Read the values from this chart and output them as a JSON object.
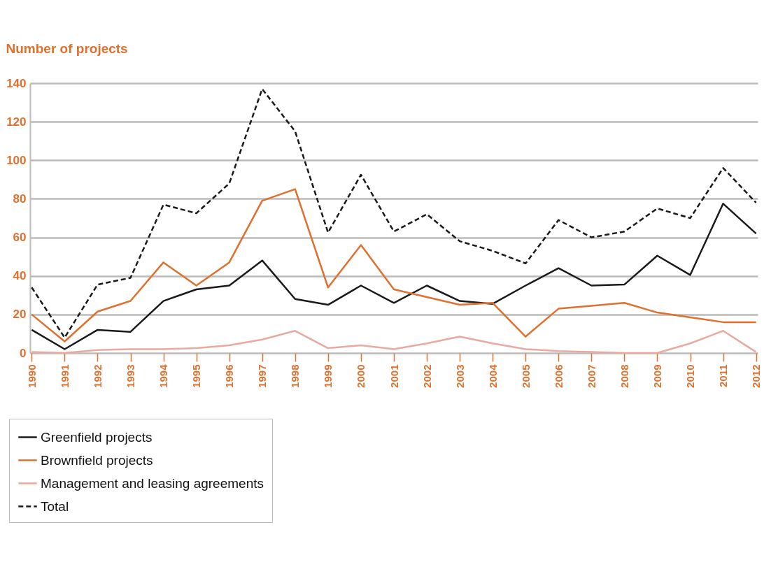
{
  "chart_data": {
    "type": "line",
    "ylabel": "Number of projects",
    "categories": [
      "1990",
      "1991",
      "1992",
      "1993",
      "1994",
      "1995",
      "1996",
      "1997",
      "1998",
      "1999",
      "2000",
      "2001",
      "2002",
      "2003",
      "2004",
      "2005",
      "2006",
      "2007",
      "2008",
      "2009",
      "2010",
      "2011",
      "2012"
    ],
    "series": [
      {
        "name": "Greenfield projects",
        "color": "#1a1a1a",
        "values": [
          12,
          2,
          12,
          11,
          27,
          33,
          35,
          48,
          28,
          25,
          35,
          26,
          35,
          27,
          25.5,
          35,
          44,
          35,
          35.5,
          50.5,
          40.5,
          77.5,
          62
        ]
      },
      {
        "name": "Brownfield projects",
        "color": "#e0702e",
        "values": [
          20,
          6,
          21.5,
          27,
          47,
          35,
          47,
          79,
          85,
          34,
          56,
          33,
          29,
          25,
          26,
          8.5,
          23,
          24.5,
          26,
          21,
          18.5,
          16,
          16
        ]
      },
      {
        "name": "Management and leasing agreements",
        "color": "#e8aaa0",
        "values": [
          0.5,
          0,
          1.5,
          2,
          2,
          2.5,
          4,
          7,
          11.5,
          2.5,
          4,
          2,
          5,
          8.5,
          5,
          2,
          1,
          0.5,
          0,
          0,
          5,
          11.5,
          0.5
        ]
      },
      {
        "name": "Total",
        "color": "#1a1a1a",
        "line_style": "dashed",
        "values": [
          34,
          8,
          35.5,
          39,
          77,
          72.5,
          88,
          137,
          115,
          62.5,
          92.5,
          63,
          72,
          58,
          53,
          46.5,
          69,
          60,
          63,
          75,
          70,
          96,
          78
        ]
      }
    ],
    "ylim": [
      0,
      140
    ],
    "yticks": [
      0,
      20,
      40,
      60,
      80,
      100,
      120,
      140
    ],
    "grid": "y",
    "legend": "bottom left",
    "marker": "none",
    "line_style": "solid"
  }
}
